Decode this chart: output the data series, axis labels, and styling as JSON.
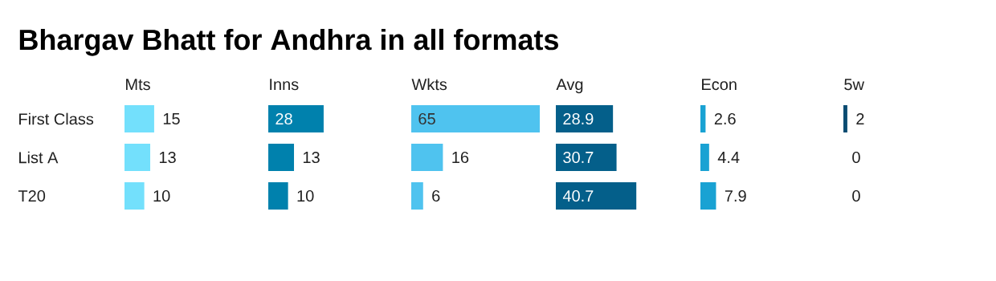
{
  "chart_data": [
    {
      "type": "bar",
      "orientation": "horizontal",
      "title": "Bhargav Bhatt for Andhra in all formats",
      "xlabel": "Mts",
      "categories": [
        "First Class",
        "List A",
        "T20"
      ],
      "values": [
        15,
        13,
        10
      ],
      "color": "#73e0fc",
      "data_labels": true,
      "tick_labels": "y"
    },
    {
      "type": "bar",
      "orientation": "horizontal",
      "xlabel": "Inns",
      "values": [
        28,
        13,
        10
      ],
      "color": "#0081ad",
      "data_labels": true,
      "tick_labels": false
    },
    {
      "type": "bar",
      "orientation": "horizontal",
      "xlabel": "Wkts",
      "values": [
        65,
        16,
        6
      ],
      "color": "#4fc3ef",
      "data_labels": true,
      "tick_labels": false
    },
    {
      "type": "bar",
      "orientation": "horizontal",
      "xlabel": "Avg",
      "values": [
        28.9,
        30.7,
        40.7
      ],
      "color": "#045f8a",
      "data_labels": true,
      "tick_labels": false
    },
    {
      "type": "bar",
      "orientation": "horizontal",
      "xlabel": "Econ",
      "values": [
        2.6,
        4.4,
        7.9
      ],
      "color": "#19a2d3",
      "data_labels": true,
      "tick_labels": false
    },
    {
      "type": "bar",
      "orientation": "horizontal",
      "xlabel": "5w",
      "values": [
        2,
        0,
        0
      ],
      "color": "#0a4c72",
      "data_labels": true,
      "tick_labels": false
    }
  ]
}
